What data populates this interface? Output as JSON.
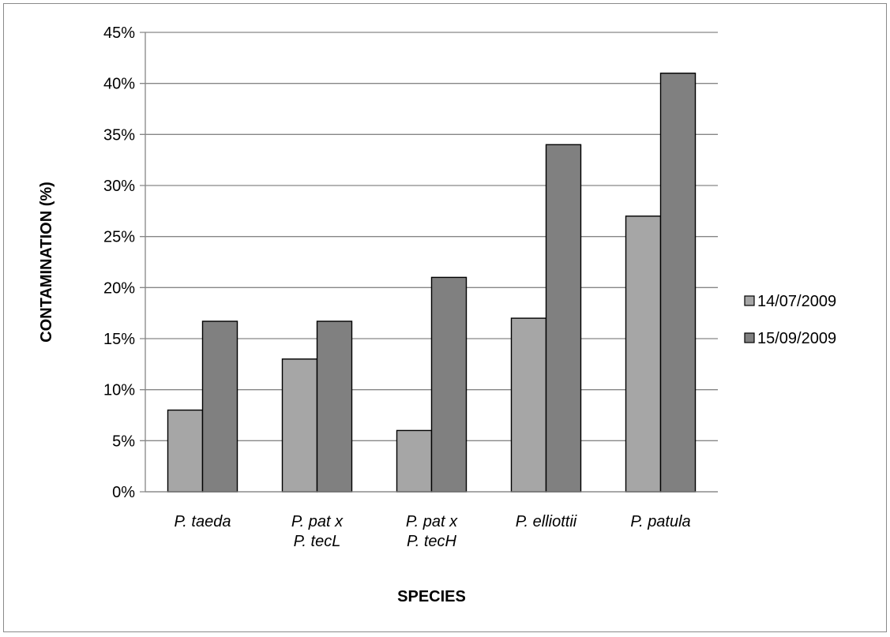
{
  "chart_data": {
    "type": "bar",
    "categories": [
      [
        "P. taeda"
      ],
      [
        "P. pat x",
        "P. tecL"
      ],
      [
        "P. pat x",
        "P. tecH"
      ],
      [
        "P. elliottii"
      ],
      [
        "P. patula"
      ]
    ],
    "series": [
      {
        "name": "14/07/2009",
        "color": "#a6a6a6",
        "values": [
          8,
          13,
          6,
          17,
          27
        ]
      },
      {
        "name": "15/09/2009",
        "color": "#808080",
        "values": [
          16.7,
          16.7,
          21,
          34,
          41
        ]
      }
    ],
    "xlabel": "SPECIES",
    "ylabel": "CONTAMINATION (%)",
    "ylim": [
      0,
      45
    ],
    "ytick_step": 5,
    "ytick_suffix": "%",
    "grid": true,
    "legend_position": "right"
  }
}
